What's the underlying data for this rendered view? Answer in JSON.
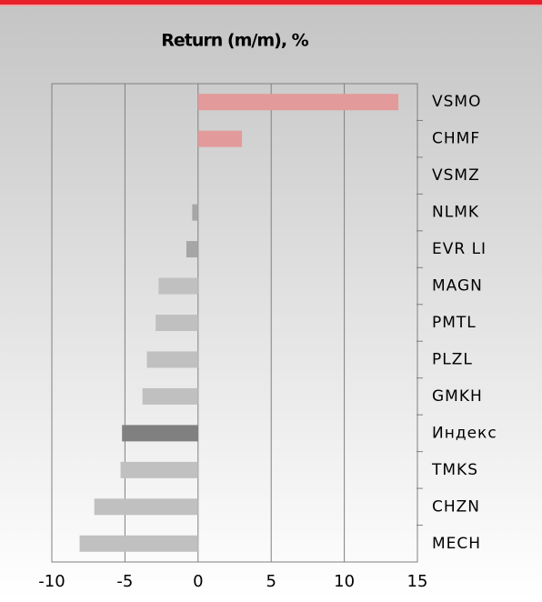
{
  "chart_data": {
    "type": "barh",
    "title": "Return (m/m), %",
    "categories": [
      "VSMO",
      "CHMF",
      "VSMZ",
      "NLMK",
      "EVR LI",
      "MAGN",
      "PMTL",
      "PLZL",
      "GMKH",
      "Индекс",
      "TMKS",
      "CHZN",
      "MECH"
    ],
    "values": [
      13.7,
      3.0,
      0,
      -0.4,
      -0.8,
      -2.7,
      -2.9,
      -3.5,
      -3.8,
      -5.2,
      -5.3,
      -7.1,
      -8.1
    ],
    "colors": [
      "#e39a9a",
      "#e39a9a",
      "#c0c0c0",
      "#a6a6a6",
      "#a6a6a6",
      "#c0c0c0",
      "#c0c0c0",
      "#c0c0c0",
      "#c0c0c0",
      "#808080",
      "#c0c0c0",
      "#c0c0c0",
      "#c0c0c0"
    ],
    "xlim": [
      -10,
      15
    ],
    "xticks": [
      -10,
      -5,
      0,
      5,
      10,
      15
    ],
    "grid": true
  }
}
